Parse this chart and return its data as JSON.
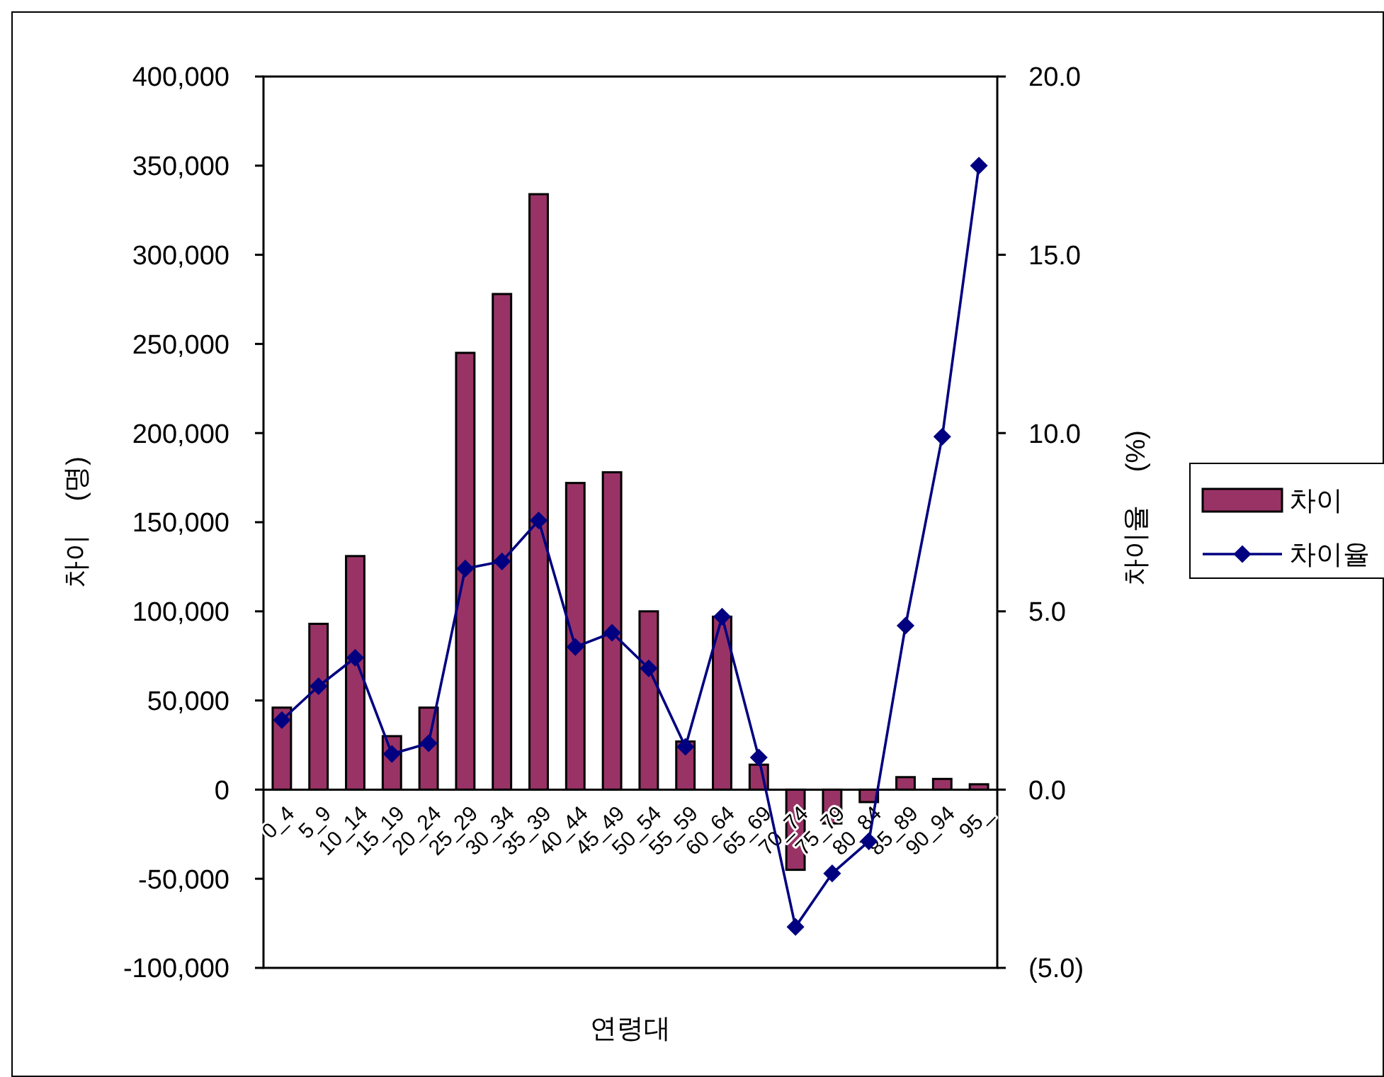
{
  "chart_data": {
    "type": "bar",
    "xlabel": "연령대",
    "ylabel": "차이 (명)",
    "y2label": "차이율 (%)",
    "categories": [
      "0_4",
      "5_9",
      "10_14",
      "15_19",
      "20_24",
      "25_29",
      "30_34",
      "35_39",
      "40_44",
      "45_49",
      "50_54",
      "55_59",
      "60_64",
      "65_69",
      "70_74",
      "75_79",
      "80_84",
      "85_89",
      "90_94",
      "95_"
    ],
    "series": [
      {
        "name": "차이",
        "color": "#993366",
        "values": [
          46000,
          93000,
          131000,
          30000,
          46000,
          245000,
          278000,
          334000,
          172000,
          178000,
          100000,
          27000,
          97000,
          14000,
          -45000,
          -19000,
          -7000,
          7000,
          6000,
          3000
        ]
      },
      {
        "name": "차이율",
        "type": "line",
        "axis": "y2",
        "color": "#000080",
        "marker": "diamond",
        "values": [
          1.95,
          2.9,
          3.7,
          1.0,
          1.3,
          6.2,
          6.4,
          7.55,
          4.0,
          4.4,
          3.4,
          1.2,
          4.85,
          0.9,
          -3.85,
          -2.35,
          -1.45,
          4.6,
          9.9,
          17.5
        ]
      }
    ],
    "ylim": [
      -100000,
      400000
    ],
    "yticks": [
      {
        "value": -100000,
        "label": "-100,000"
      },
      {
        "value": -50000,
        "label": "-50,000"
      },
      0,
      {
        "value": 50000,
        "label": "50,000"
      },
      {
        "value": 100000,
        "label": "100,000"
      },
      {
        "value": 150000,
        "label": "150,000"
      },
      {
        "value": 200000,
        "label": "200,000"
      },
      {
        "value": 250000,
        "label": "250,000"
      },
      {
        "value": 300000,
        "label": "300,000"
      },
      {
        "value": 350000,
        "label": "350,000"
      },
      {
        "value": 400000,
        "label": "400,000"
      }
    ],
    "y2lim": [
      -5,
      20
    ],
    "y2ticks": [
      {
        "value": -5,
        "label": "(5.0)"
      },
      {
        "value": 0,
        "label": "0.0"
      },
      {
        "value": 5,
        "label": "5.0"
      },
      {
        "value": 10,
        "label": "10.0"
      },
      {
        "value": 15,
        "label": "15.0"
      },
      {
        "value": 20,
        "label": "20.0"
      }
    ],
    "legend": "right",
    "grid": false
  }
}
